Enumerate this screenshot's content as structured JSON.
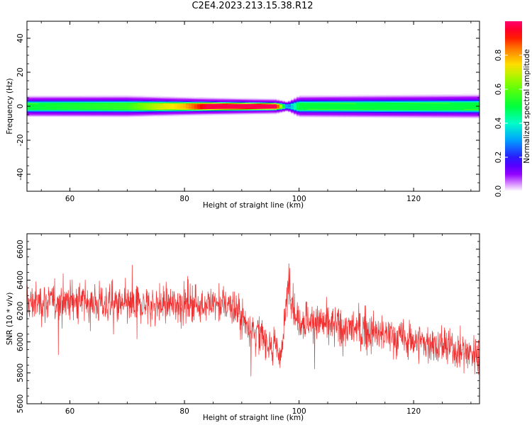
{
  "title": "C2E4.2023.213.15.38.R12",
  "chart_data": [
    {
      "type": "heatmap",
      "xlabel": "Height of straight line (km)",
      "ylabel": "Frequency (Hz)",
      "xlim": [
        52.5,
        131.5
      ],
      "ylim": [
        -50,
        50
      ],
      "xticks": [
        60,
        80,
        100,
        120
      ],
      "yticks": [
        -40,
        -20,
        0,
        20,
        40
      ],
      "colorbar": {
        "label": "Normalized spectral amplitude",
        "range": [
          0,
          1
        ],
        "ticks": [
          "0.0",
          "0.2",
          "0.4",
          "0.6",
          "0.8"
        ],
        "colormap": "gist_rainbow_r (white at zero)"
      },
      "band": {
        "center_hz": 0,
        "half_width_hz": [
          {
            "x": 52.5,
            "hw": 3.5
          },
          {
            "x": 70,
            "hw": 3.6
          },
          {
            "x": 82,
            "hw": 3.0
          },
          {
            "x": 96,
            "hw": 2.5
          },
          {
            "x": 98,
            "hw": 1.6
          },
          {
            "x": 100,
            "hw": 3.6
          },
          {
            "x": 131.5,
            "hw": 4.0
          }
        ],
        "peak_amplitude": [
          {
            "x": 52.5,
            "amp": 0.5
          },
          {
            "x": 70,
            "amp": 0.55
          },
          {
            "x": 75,
            "amp": 0.68
          },
          {
            "x": 80,
            "amp": 0.78
          },
          {
            "x": 84,
            "amp": 0.97
          },
          {
            "x": 96,
            "amp": 0.98
          },
          {
            "x": 98,
            "amp": 0.25
          },
          {
            "x": 100,
            "amp": 0.5
          },
          {
            "x": 131.5,
            "amp": 0.5
          }
        ]
      }
    },
    {
      "type": "line",
      "xlabel": "Height of straight line (km)",
      "ylabel": "SNR (10 * v/v)",
      "xlim": [
        52.5,
        131.5
      ],
      "ylim": [
        5600,
        6700
      ],
      "xticks": [
        60,
        80,
        100,
        120
      ],
      "yticks": [
        5600,
        5800,
        6000,
        6200,
        6400,
        6600
      ],
      "color": "#f03030",
      "trend": [
        {
          "x": 52.5,
          "y": 6250
        },
        {
          "x": 60,
          "y": 6270
        },
        {
          "x": 70,
          "y": 6230
        },
        {
          "x": 80,
          "y": 6250
        },
        {
          "x": 88,
          "y": 6240
        },
        {
          "x": 92,
          "y": 6080
        },
        {
          "x": 95,
          "y": 5990
        },
        {
          "x": 97,
          "y": 5920
        },
        {
          "x": 98.2,
          "y": 6420
        },
        {
          "x": 99.5,
          "y": 6150
        },
        {
          "x": 110,
          "y": 6080
        },
        {
          "x": 120,
          "y": 6010
        },
        {
          "x": 131.5,
          "y": 5920
        }
      ],
      "noise_std": 90
    }
  ]
}
